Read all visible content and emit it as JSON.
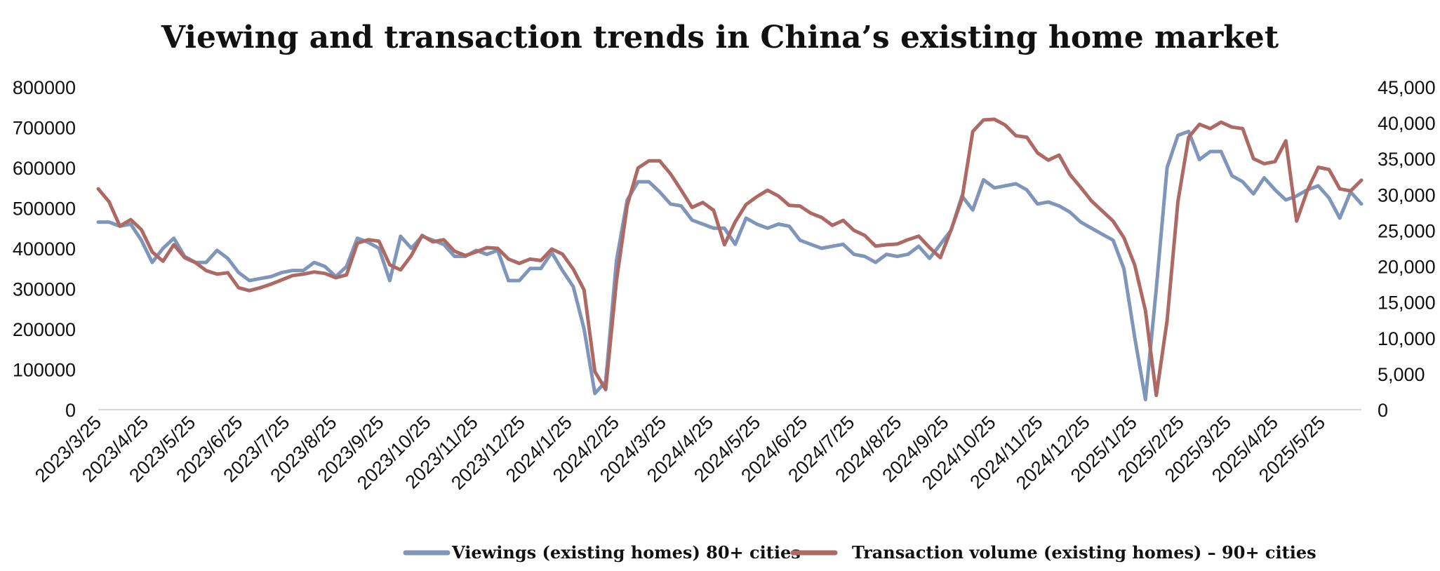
{
  "chart_data": {
    "type": "line",
    "title": "Viewing and transaction trends in China’s existing home market",
    "x_tick_labels": [
      "2023/3/25",
      "2023/4/25",
      "2023/5/25",
      "2023/6/25",
      "2023/7/25",
      "2023/8/25",
      "2023/9/25",
      "2023/10/25",
      "2023/11/25",
      "2023/12/25",
      "2024/1/25",
      "2024/2/25",
      "2024/3/25",
      "2024/4/25",
      "2024/5/25",
      "2024/6/25",
      "2024/7/25",
      "2024/8/25",
      "2024/9/25",
      "2024/10/25",
      "2024/11/25",
      "2024/12/25",
      "2025/1/25",
      "2025/2/25",
      "2025/3/25",
      "2025/4/25",
      "2025/5/25"
    ],
    "y_left": {
      "ticks": [
        "800000",
        "700000",
        "600000",
        "500000",
        "400000",
        "300000",
        "200000",
        "100000",
        "0"
      ],
      "ylim": [
        0,
        800000
      ]
    },
    "y_right": {
      "ticks": [
        "45,000",
        "40,000",
        "35,000",
        "30,000",
        "25,000",
        "20,000",
        "15,000",
        "10,000",
        "5,000",
        "0"
      ],
      "ylim": [
        0,
        45000
      ]
    },
    "legend_position": "bottom",
    "series": [
      {
        "name": "Viewings (existing homes)  80+ cities",
        "axis": "left",
        "color": "#7f95b9",
        "values": [
          465000,
          465000,
          455000,
          460000,
          420000,
          365000,
          400000,
          425000,
          380000,
          365000,
          365000,
          395000,
          375000,
          340000,
          320000,
          325000,
          330000,
          340000,
          345000,
          345000,
          365000,
          355000,
          330000,
          355000,
          425000,
          415000,
          400000,
          320000,
          430000,
          400000,
          430000,
          420000,
          410000,
          380000,
          380000,
          395000,
          385000,
          395000,
          320000,
          320000,
          350000,
          350000,
          390000,
          345000,
          305000,
          200000,
          40000,
          70000,
          370000,
          520000,
          565000,
          565000,
          540000,
          510000,
          505000,
          470000,
          460000,
          450000,
          450000,
          410000,
          475000,
          460000,
          450000,
          460000,
          455000,
          420000,
          410000,
          400000,
          405000,
          410000,
          385000,
          380000,
          365000,
          385000,
          380000,
          385000,
          405000,
          375000,
          410000,
          445000,
          530000,
          495000,
          570000,
          550000,
          555000,
          560000,
          545000,
          510000,
          515000,
          505000,
          490000,
          465000,
          450000,
          435000,
          420000,
          350000,
          180000,
          25000,
          300000,
          600000,
          680000,
          690000,
          620000,
          640000,
          640000,
          580000,
          565000,
          535000,
          575000,
          545000,
          520000,
          530000,
          545000,
          555000,
          525000,
          475000,
          540000,
          510000
        ]
      },
      {
        "name": "Transaction volume (existing homes) – 90+ cities",
        "axis": "right",
        "color": "#ad6a64",
        "values": [
          30800,
          29000,
          25600,
          26500,
          25100,
          22000,
          20700,
          23000,
          21200,
          20500,
          19400,
          18900,
          19100,
          17000,
          16600,
          17000,
          17500,
          18100,
          18700,
          18900,
          19200,
          19000,
          18400,
          18800,
          23200,
          23700,
          23500,
          20200,
          19500,
          21500,
          24300,
          23400,
          23700,
          22100,
          21500,
          22000,
          22600,
          22500,
          21000,
          20400,
          21000,
          20800,
          22400,
          21700,
          19600,
          16700,
          5300,
          2800,
          18000,
          28500,
          33700,
          34700,
          34700,
          32900,
          30600,
          28200,
          28900,
          27800,
          23000,
          26200,
          28600,
          29700,
          30600,
          29800,
          28500,
          28400,
          27400,
          26800,
          25700,
          26400,
          25000,
          24300,
          22800,
          23000,
          23100,
          23700,
          24200,
          22600,
          21200,
          25100,
          29400,
          38800,
          40400,
          40500,
          39700,
          38200,
          38000,
          35800,
          34800,
          35500,
          32800,
          31000,
          29100,
          27700,
          26300,
          24000,
          20200,
          13800,
          2000,
          12400,
          29000,
          38000,
          39800,
          39200,
          40100,
          39400,
          39200,
          35000,
          34300,
          34600,
          37500,
          26300,
          30600,
          33800,
          33500,
          30800,
          30500,
          32000
        ]
      }
    ]
  }
}
